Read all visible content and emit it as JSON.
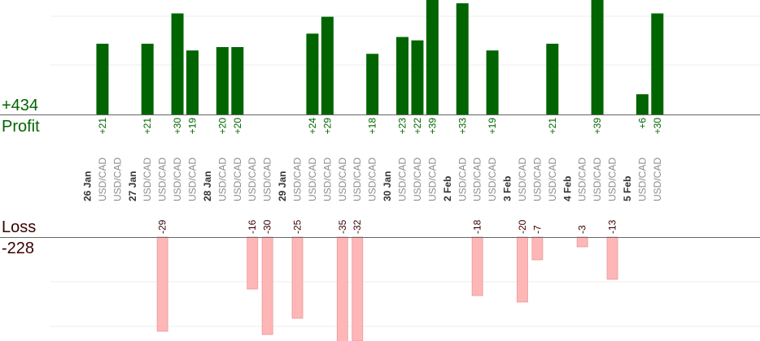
{
  "summary": {
    "profit_total": "+434",
    "profit_label": "Profit",
    "loss_label": "Loss",
    "loss_total": "-228"
  },
  "colors": {
    "profit_bar": "#006400",
    "loss_bar": "#ffb6b6",
    "profit_text": "#006400",
    "loss_text": "#3a0000"
  },
  "chart_data": {
    "type": "bar",
    "grid": true,
    "slots": [
      {
        "date": "26 Jan"
      },
      {
        "pair": "USD/CAD",
        "value": 21
      },
      {
        "pair": "USD/CAD"
      },
      {
        "date": "27 Jan"
      },
      {
        "pair": "USD/CAD",
        "value": 21
      },
      {
        "pair": "USD/CAD",
        "value": -29
      },
      {
        "pair": "USD/CAD",
        "value": 30
      },
      {
        "pair": "USD/CAD",
        "value": 19
      },
      {
        "date": "28 Jan"
      },
      {
        "pair": "USD/CAD",
        "value": 20
      },
      {
        "pair": "USD/CAD",
        "value": 20
      },
      {
        "pair": "USD/CAD",
        "value": -16
      },
      {
        "pair": "USD/CAD",
        "value": -30
      },
      {
        "date": "29 Jan"
      },
      {
        "pair": "USD/CAD",
        "value": -25
      },
      {
        "pair": "USD/CAD",
        "value": 24
      },
      {
        "pair": "USD/CAD",
        "value": 29
      },
      {
        "pair": "USD/CAD",
        "value": -35
      },
      {
        "pair": "USD/CAD",
        "value": -32
      },
      {
        "pair": "USD/CAD",
        "value": 18
      },
      {
        "date": "30 Jan"
      },
      {
        "pair": "USD/CAD",
        "value": 23
      },
      {
        "pair": "USD/CAD",
        "value": 22
      },
      {
        "pair": "USD/CAD",
        "value": 39
      },
      {
        "date": "2 Feb"
      },
      {
        "pair": "USD/CAD",
        "value": 33
      },
      {
        "pair": "USD/CAD",
        "value": -18
      },
      {
        "pair": "USD/CAD",
        "value": 19
      },
      {
        "date": "3 Feb"
      },
      {
        "pair": "USD/CAD",
        "value": -20
      },
      {
        "pair": "USD/CAD",
        "value": -7
      },
      {
        "pair": "USD/CAD",
        "value": 21
      },
      {
        "date": "4 Feb"
      },
      {
        "pair": "USD/CAD",
        "value": -3
      },
      {
        "pair": "USD/CAD",
        "value": 39
      },
      {
        "pair": "USD/CAD",
        "value": -13
      },
      {
        "date": "5 Feb"
      },
      {
        "pair": "USD/CAD",
        "value": 6
      },
      {
        "pair": "USD/CAD",
        "value": 30
      }
    ]
  }
}
